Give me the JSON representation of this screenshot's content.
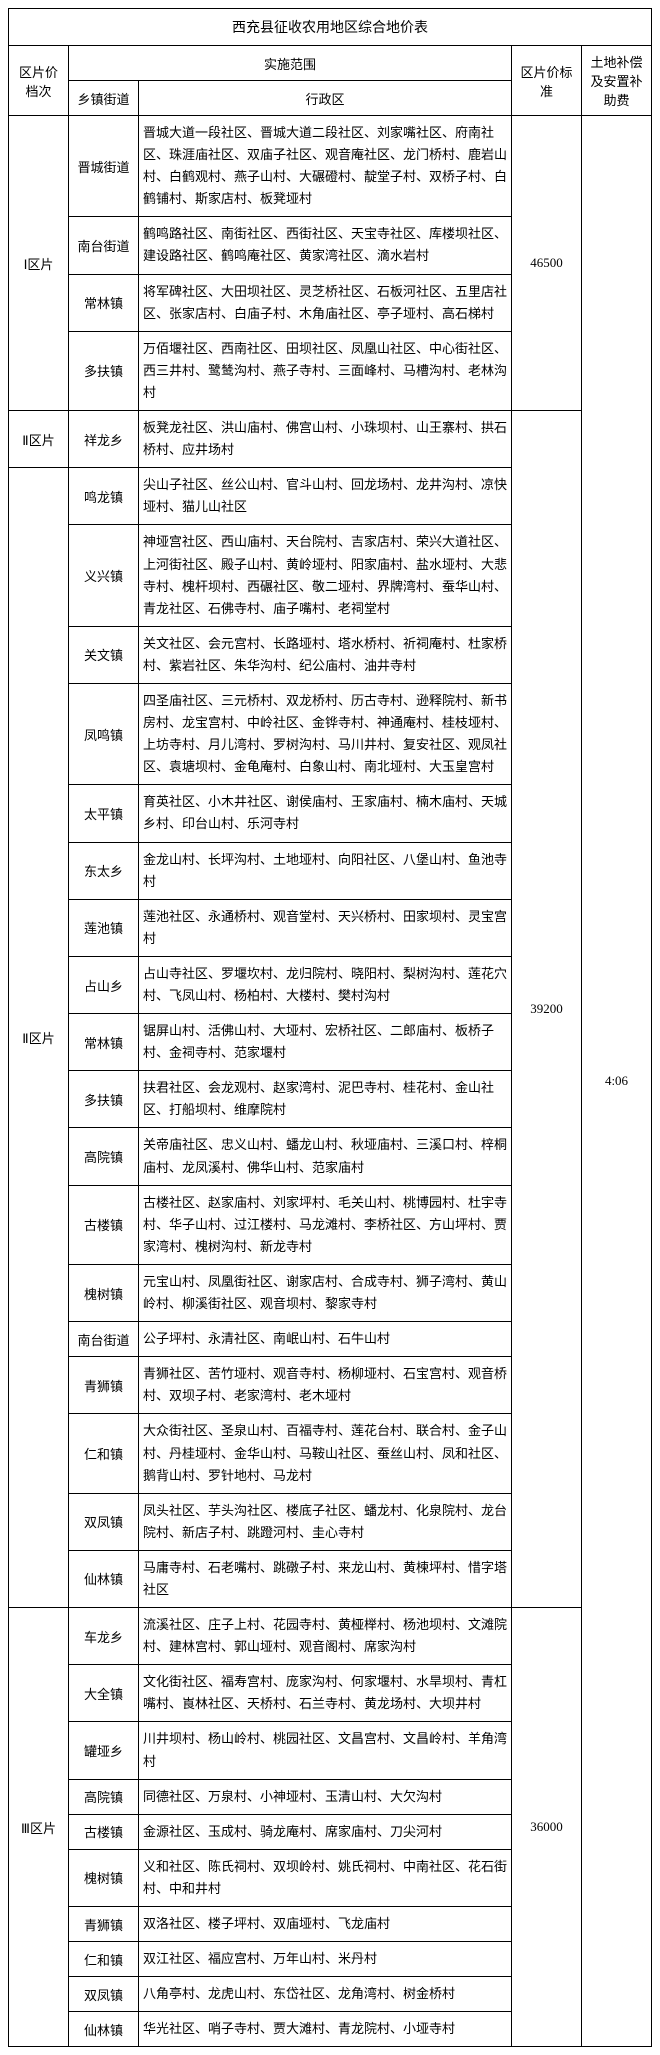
{
  "title": "西充县征收农用地区综合地价表",
  "headers": {
    "area": "区片价档次",
    "scope": "实施范围",
    "town": "乡镇街道",
    "district": "行政区",
    "standard": "区片价标准",
    "compensation": "土地补偿及安置补助费"
  },
  "compensation_value": "4:06",
  "zones": [
    {
      "area_label": "Ⅰ区片",
      "standard": "46500",
      "rows": [
        {
          "town": "晋城街道",
          "district": "晋城大道一段社区、晋城大道二段社区、刘家嘴社区、府南社区、珠涯庙社区、双庙子社区、观音庵社区、龙门桥村、鹿岩山村、白鹤观村、燕子山村、大碾磴村、靛堂子村、双桥子村、白鹤铺村、斯家店村、板凳垭村"
        },
        {
          "town": "南台街道",
          "district": "鹤鸣路社区、南街社区、西街社区、天宝寺社区、库楼坝社区、建设路社区、鹤鸣庵社区、黄家湾社区、滴水岩村"
        },
        {
          "town": "常林镇",
          "district": "将军碑社区、大田坝社区、灵芝桥社区、石板河社区、五里店社区、张家店村、白庙子村、木角庙社区、亭子垭村、高石梯村"
        },
        {
          "town": "多扶镇",
          "district": "万佰堰社区、西南社区、田坝社区、凤凰山社区、中心街社区、西三井村、鹭鸶沟村、燕子寺村、三面峰村、马槽沟村、老林沟村"
        }
      ]
    },
    {
      "area_label_a": "Ⅱ区片",
      "area_label_b": "Ⅱ区片",
      "standard": "39200",
      "rows": [
        {
          "town": "祥龙乡",
          "district": "板凳龙社区、洪山庙村、佛宫山村、小珠坝村、山王寨村、拱石桥村、应井场村"
        },
        {
          "town": "鸣龙镇",
          "district": "尖山子社区、丝公山村、官斗山村、回龙场村、龙井沟村、凉快垭村、猫儿山社区"
        },
        {
          "town": "义兴镇",
          "district": "神垭宫社区、西山庙村、天台院村、吉家店村、荣兴大道社区、上河街社区、殿子山村、黄岭垭村、阳家庙村、盐水垭村、大悲寺村、槐杆坝村、西碾社区、敬二垭村、界牌湾村、蚕华山村、青龙社区、石佛寺村、庙子嘴村、老祠堂村"
        },
        {
          "town": "关文镇",
          "district": "关文社区、会元宫村、长路垭村、塔水桥村、祈祠庵村、杜家桥村、紫岩社区、朱华沟村、纪公庙村、油井寺村"
        },
        {
          "town": "凤鸣镇",
          "district": "四圣庙社区、三元桥村、双龙桥村、历古寺村、逊释院村、新书房村、龙宝宫村、中岭社区、金铧寺村、神通庵村、桂枝垭村、上坊寺村、月儿湾村、罗树沟村、马川井村、复安社区、观凤社区、袁塘坝村、金龟庵村、白象山村、南北垭村、大玉皇宫村"
        },
        {
          "town": "太平镇",
          "district": "育英社区、小木井社区、谢侯庙村、王家庙村、楠木庙村、天城乡村、印台山村、乐河寺村"
        },
        {
          "town": "东太乡",
          "district": "金龙山村、长坪沟村、土地垭村、向阳社区、八堡山村、鱼池寺村"
        },
        {
          "town": "莲池镇",
          "district": "莲池社区、永通桥村、观音堂村、天兴桥村、田家坝村、灵宝宫村"
        },
        {
          "town": "占山乡",
          "district": "占山寺社区、罗堰坎村、龙归院村、晓阳村、梨树沟村、莲花穴村、飞凤山村、杨柏村、大楼村、樊村沟村"
        },
        {
          "town": "常林镇",
          "district": "锯屏山村、活佛山村、大垭村、宏桥社区、二郎庙村、板桥子村、金祠寺村、范家堰村"
        },
        {
          "town": "多扶镇",
          "district": "扶君社区、会龙观村、赵家湾村、泥巴寺村、桂花村、金山社区、打船坝村、维摩院村"
        },
        {
          "town": "高院镇",
          "district": "关帝庙社区、忠义山村、蟠龙山村、秋垭庙村、三溪口村、梓桐庙村、龙凤溪村、佛华山村、范家庙村"
        },
        {
          "town": "古楼镇",
          "district": "古楼社区、赵家庙村、刘家坪村、毛关山村、桃博园村、杜宇寺村、华子山村、过江楼村、马龙滩村、李桥社区、方山坪村、贾家湾村、槐树沟村、新龙寺村"
        },
        {
          "town": "槐树镇",
          "district": "元宝山村、凤凰街社区、谢家店村、合成寺村、狮子湾村、黄山岭村、柳溪街社区、观音坝村、黎家寺村"
        },
        {
          "town": "南台街道",
          "district": "公子坪村、永清社区、南岷山村、石牛山村"
        },
        {
          "town": "青狮镇",
          "district": "青狮社区、苦竹垭村、观音寺村、杨柳垭村、石宝宫村、观音桥村、双坝子村、老家湾村、老木垭村"
        },
        {
          "town": "仁和镇",
          "district": "大众街社区、圣泉山村、百福寺村、莲花台村、联合村、金子山村、丹桂垭村、金华山村、马鞍山社区、蚕丝山村、凤和社区、鹅背山村、罗针地村、马龙村"
        },
        {
          "town": "双凤镇",
          "district": "凤头社区、芋头沟社区、楼底子社区、蟠龙村、化泉院村、龙台院村、新店子村、跳蹬河村、圭心寺村"
        },
        {
          "town": "仙林镇",
          "district": "马庸寺村、石老嘴村、跳礅子村、来龙山村、黄楝坪村、惜字塔社区"
        }
      ]
    },
    {
      "area_label": "Ⅲ区片",
      "standard": "36000",
      "rows": [
        {
          "town": "车龙乡",
          "district": "流溪社区、庄子上村、花园寺村、黄桠榉村、杨池坝村、文滩院村、建林宫村、郭山垭村、观音阁村、席家沟村"
        },
        {
          "town": "大全镇",
          "district": "文化街社区、福寿宫村、庞家沟村、何家堰村、水旱坝村、青杠嘴村、崀林社区、天桥村、石兰寺村、黄龙场村、大坝井村"
        },
        {
          "town": "罐垭乡",
          "district": "川井坝村、杨山岭村、桃园社区、文昌宫村、文昌岭村、羊角湾村"
        },
        {
          "town": "高院镇",
          "district": "同德社区、万泉村、小神垭村、玉清山村、大欠沟村"
        },
        {
          "town": "古楼镇",
          "district": "金源社区、玉成村、骑龙庵村、席家庙村、刀尖河村"
        },
        {
          "town": "槐树镇",
          "district": "义和社区、陈氏祠村、双坝岭村、姚氏祠村、中南社区、花石街村、中和井村"
        },
        {
          "town": "青狮镇",
          "district": "双洛社区、楼子坪村、双庙垭村、飞龙庙村"
        },
        {
          "town": "仁和镇",
          "district": "双江社区、福应宫村、万年山村、米丹村"
        },
        {
          "town": "双凤镇",
          "district": "八角亭村、龙虎山村、东岱社区、龙角湾村、树金桥村"
        },
        {
          "town": "仙林镇",
          "district": "华光社区、哨子寺村、贾大滩村、青龙院村、小垭寺村"
        }
      ]
    }
  ]
}
